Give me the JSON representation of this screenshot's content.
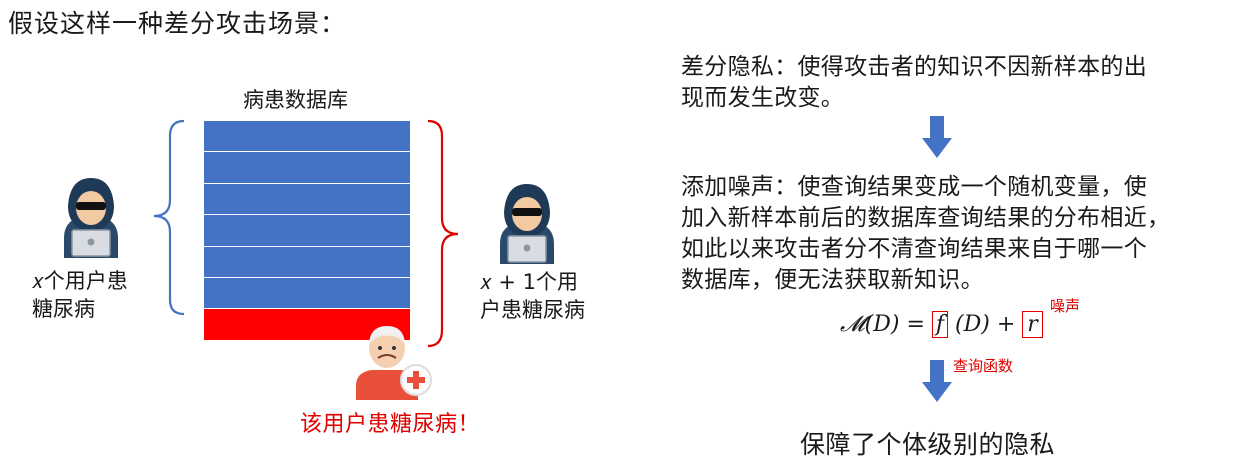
{
  "title": "假设这样一种差分攻击场景：",
  "database": {
    "label": "病患数据库",
    "normal_rows": 6,
    "sick_rows": 1,
    "colors": {
      "normal": "#4472c4",
      "sick": "#ff0000"
    }
  },
  "attacker_left": {
    "caption_line1": "𝑥个用户患",
    "caption_line2": "糖尿病"
  },
  "attacker_right": {
    "caption_line1": "𝑥 + 1个用",
    "caption_line2": "户患糖尿病"
  },
  "alert": "该用户患糖尿病！",
  "explanation": {
    "dp_line1": "差分隐私：使得攻击者的知识不因新样本的出",
    "dp_line2": "现而发生改变。",
    "noise_line1": "添加噪声：使查询结果变成一个随机变量，使",
    "noise_line2": "加入新样本前后的数据库查询结果的分布相近，",
    "noise_line3": "如此以来攻击者分不清查询结果来自于哪一个",
    "noise_line4": "数据库，便无法获取新知识。"
  },
  "formula": {
    "lhs": "𝓜(𝐷) =",
    "f": "𝑓",
    "mid": "(𝐷) +",
    "r": "𝑟",
    "noise_label": "噪声",
    "query_label": "查询函数"
  },
  "conclusion": "保障了个体级别的隐私",
  "icons": [
    "hacker-icon",
    "patient-icon",
    "medical-cross-icon",
    "down-arrow-icon"
  ],
  "accent_colors": {
    "arrow": "#4472c4",
    "bracket_left": "#4472c4",
    "bracket_right": "#e00000",
    "highlight": "#e00000"
  }
}
